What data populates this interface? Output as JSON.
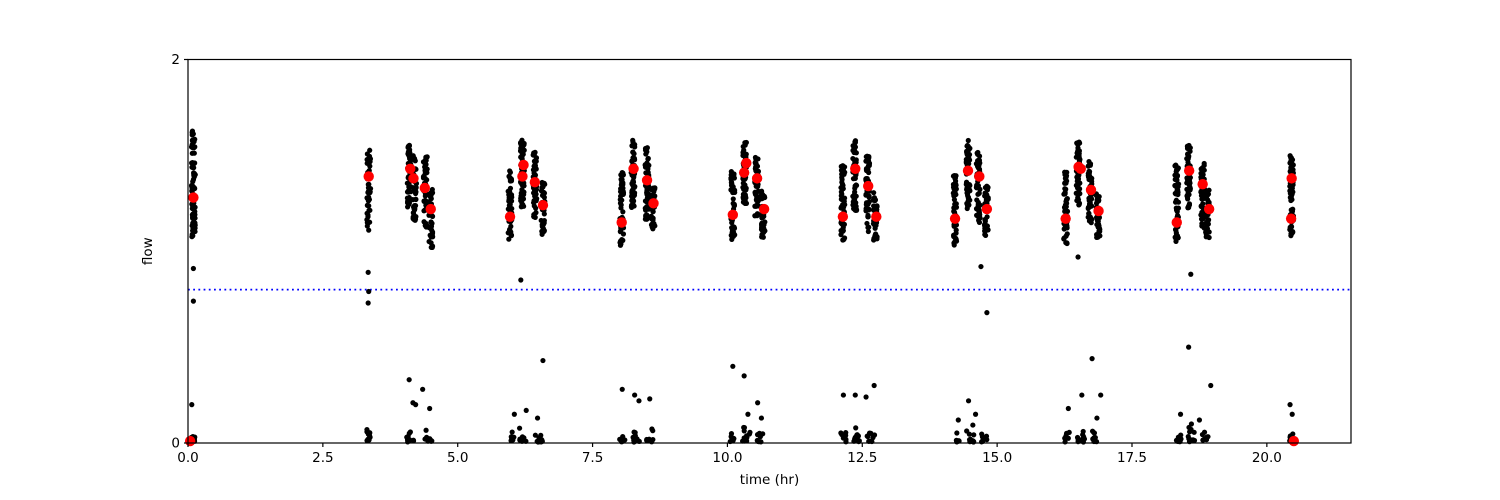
{
  "chart_data": {
    "type": "scatter",
    "title": "",
    "xlabel": "time (hr)",
    "ylabel": "flow",
    "xlim": [
      0,
      21.56
    ],
    "ylim": [
      0,
      2
    ],
    "grid": false,
    "legend": false,
    "x_ticks": [
      {
        "v": 0.0,
        "label": "0.0"
      },
      {
        "v": 2.5,
        "label": "2.5"
      },
      {
        "v": 5.0,
        "label": "5.0"
      },
      {
        "v": 7.5,
        "label": "7.5"
      },
      {
        "v": 10.0,
        "label": "10.0"
      },
      {
        "v": 12.5,
        "label": "12.5"
      },
      {
        "v": 15.0,
        "label": "15.0"
      },
      {
        "v": 17.5,
        "label": "17.5"
      },
      {
        "v": 20.0,
        "label": "20.0"
      }
    ],
    "y_ticks": [
      {
        "v": 0,
        "label": "0"
      },
      {
        "v": 2,
        "label": "2"
      }
    ],
    "threshold_line": {
      "y": 0.8,
      "color": "#0000ff",
      "style": "dotted"
    },
    "point_color": "#000000",
    "point_radius": 2.6,
    "marker_color": "#ff0000",
    "marker_radius": 5.2,
    "bands": [
      {
        "t": 0.1,
        "fmin": 1.45,
        "fmax": 1.65,
        "n": 22
      },
      {
        "t": 0.1,
        "fmin": 1.07,
        "fmax": 1.44,
        "n": 60
      },
      {
        "t": 3.35,
        "fmin": 1.13,
        "fmax": 1.53,
        "n": 50
      },
      {
        "t": 4.1,
        "fmin": 1.22,
        "fmax": 1.56,
        "n": 55
      },
      {
        "t": 4.2,
        "fmin": 1.15,
        "fmax": 1.5,
        "n": 40
      },
      {
        "t": 4.4,
        "fmin": 1.12,
        "fmax": 1.5,
        "n": 50
      },
      {
        "t": 4.5,
        "fmin": 1.02,
        "fmax": 1.34,
        "n": 40
      },
      {
        "t": 5.97,
        "fmin": 1.05,
        "fmax": 1.42,
        "n": 50
      },
      {
        "t": 6.2,
        "fmin": 1.22,
        "fmax": 1.58,
        "n": 60
      },
      {
        "t": 6.43,
        "fmin": 1.17,
        "fmax": 1.52,
        "n": 50
      },
      {
        "t": 6.58,
        "fmin": 1.08,
        "fmax": 1.36,
        "n": 40
      },
      {
        "t": 8.04,
        "fmin": 1.03,
        "fmax": 1.41,
        "n": 50
      },
      {
        "t": 8.25,
        "fmin": 1.22,
        "fmax": 1.58,
        "n": 60
      },
      {
        "t": 8.51,
        "fmin": 1.15,
        "fmax": 1.54,
        "n": 50
      },
      {
        "t": 8.62,
        "fmin": 1.1,
        "fmax": 1.34,
        "n": 35
      },
      {
        "t": 10.1,
        "fmin": 1.05,
        "fmax": 1.42,
        "n": 50
      },
      {
        "t": 10.32,
        "fmin": 1.24,
        "fmax": 1.57,
        "n": 60
      },
      {
        "t": 10.54,
        "fmin": 1.18,
        "fmax": 1.5,
        "n": 50
      },
      {
        "t": 10.66,
        "fmin": 1.06,
        "fmax": 1.32,
        "n": 40
      },
      {
        "t": 12.14,
        "fmin": 1.05,
        "fmax": 1.45,
        "n": 50
      },
      {
        "t": 12.36,
        "fmin": 1.2,
        "fmax": 1.58,
        "n": 60
      },
      {
        "t": 12.6,
        "fmin": 1.1,
        "fmax": 1.5,
        "n": 55
      },
      {
        "t": 12.74,
        "fmin": 1.05,
        "fmax": 1.32,
        "n": 35
      },
      {
        "t": 14.22,
        "fmin": 1.03,
        "fmax": 1.4,
        "n": 50
      },
      {
        "t": 14.46,
        "fmin": 1.22,
        "fmax": 1.58,
        "n": 60
      },
      {
        "t": 14.65,
        "fmin": 1.15,
        "fmax": 1.52,
        "n": 50
      },
      {
        "t": 14.8,
        "fmin": 1.08,
        "fmax": 1.34,
        "n": 40
      },
      {
        "t": 16.27,
        "fmin": 1.04,
        "fmax": 1.42,
        "n": 50
      },
      {
        "t": 16.5,
        "fmin": 1.24,
        "fmax": 1.58,
        "n": 60
      },
      {
        "t": 16.72,
        "fmin": 1.12,
        "fmax": 1.48,
        "n": 50
      },
      {
        "t": 16.87,
        "fmin": 1.06,
        "fmax": 1.32,
        "n": 40
      },
      {
        "t": 18.33,
        "fmin": 1.04,
        "fmax": 1.46,
        "n": 55
      },
      {
        "t": 18.55,
        "fmin": 1.22,
        "fmax": 1.56,
        "n": 60
      },
      {
        "t": 18.81,
        "fmin": 1.12,
        "fmax": 1.46,
        "n": 50
      },
      {
        "t": 18.9,
        "fmin": 1.06,
        "fmax": 1.33,
        "n": 40
      },
      {
        "t": 20.46,
        "fmin": 1.06,
        "fmax": 1.5,
        "n": 65
      }
    ],
    "ground_clusters": [
      {
        "t": 0.07,
        "dt": 0.06,
        "fmax": 0.06,
        "n": 8
      },
      {
        "t": 3.35,
        "dt": 0.04,
        "fmax": 0.09,
        "n": 10
      },
      {
        "t": 4.12,
        "dt": 0.08,
        "fmax": 0.08,
        "n": 12
      },
      {
        "t": 4.45,
        "dt": 0.07,
        "fmax": 0.07,
        "n": 10
      },
      {
        "t": 6.0,
        "dt": 0.05,
        "fmax": 0.06,
        "n": 7
      },
      {
        "t": 6.2,
        "dt": 0.07,
        "fmax": 0.09,
        "n": 11
      },
      {
        "t": 6.5,
        "dt": 0.07,
        "fmax": 0.07,
        "n": 9
      },
      {
        "t": 8.05,
        "dt": 0.05,
        "fmax": 0.07,
        "n": 8
      },
      {
        "t": 8.3,
        "dt": 0.07,
        "fmax": 0.1,
        "n": 12
      },
      {
        "t": 8.57,
        "dt": 0.07,
        "fmax": 0.08,
        "n": 9
      },
      {
        "t": 10.1,
        "dt": 0.05,
        "fmax": 0.07,
        "n": 8
      },
      {
        "t": 10.35,
        "dt": 0.07,
        "fmax": 0.1,
        "n": 12
      },
      {
        "t": 10.62,
        "dt": 0.07,
        "fmax": 0.08,
        "n": 9
      },
      {
        "t": 12.15,
        "dt": 0.05,
        "fmax": 0.07,
        "n": 8
      },
      {
        "t": 12.4,
        "dt": 0.07,
        "fmax": 0.1,
        "n": 12
      },
      {
        "t": 12.66,
        "dt": 0.07,
        "fmax": 0.08,
        "n": 9
      },
      {
        "t": 14.25,
        "dt": 0.05,
        "fmax": 0.08,
        "n": 9
      },
      {
        "t": 14.5,
        "dt": 0.07,
        "fmax": 0.1,
        "n": 12
      },
      {
        "t": 14.76,
        "dt": 0.06,
        "fmax": 0.07,
        "n": 8
      },
      {
        "t": 16.3,
        "dt": 0.05,
        "fmax": 0.08,
        "n": 9
      },
      {
        "t": 16.55,
        "dt": 0.07,
        "fmax": 0.1,
        "n": 12
      },
      {
        "t": 16.8,
        "dt": 0.06,
        "fmax": 0.08,
        "n": 9
      },
      {
        "t": 18.36,
        "dt": 0.05,
        "fmax": 0.07,
        "n": 8
      },
      {
        "t": 18.6,
        "dt": 0.07,
        "fmax": 0.1,
        "n": 12
      },
      {
        "t": 18.86,
        "dt": 0.06,
        "fmax": 0.08,
        "n": 9
      },
      {
        "t": 20.46,
        "dt": 0.05,
        "fmax": 0.08,
        "n": 10
      }
    ],
    "outliers": [
      [
        0.1,
        0.91
      ],
      [
        0.1,
        0.74
      ],
      [
        0.07,
        0.2
      ],
      [
        3.35,
        1.11
      ],
      [
        3.34,
        0.89
      ],
      [
        3.35,
        0.79
      ],
      [
        3.34,
        0.73
      ],
      [
        4.1,
        0.33
      ],
      [
        4.17,
        0.21
      ],
      [
        4.22,
        0.2
      ],
      [
        4.48,
        0.18
      ],
      [
        4.35,
        0.28
      ],
      [
        6.17,
        0.85
      ],
      [
        6.58,
        0.43
      ],
      [
        6.05,
        0.15
      ],
      [
        6.27,
        0.17
      ],
      [
        6.48,
        0.13
      ],
      [
        8.05,
        0.28
      ],
      [
        8.28,
        0.25
      ],
      [
        8.36,
        0.22
      ],
      [
        8.56,
        0.23
      ],
      [
        10.1,
        0.4
      ],
      [
        10.31,
        0.35
      ],
      [
        10.56,
        0.21
      ],
      [
        10.38,
        0.15
      ],
      [
        10.63,
        0.13
      ],
      [
        12.15,
        0.25
      ],
      [
        12.37,
        0.25
      ],
      [
        12.57,
        0.24
      ],
      [
        12.72,
        0.3
      ],
      [
        14.7,
        0.92
      ],
      [
        14.81,
        0.68
      ],
      [
        14.47,
        0.22
      ],
      [
        14.28,
        0.12
      ],
      [
        14.6,
        0.15
      ],
      [
        16.5,
        0.97
      ],
      [
        16.76,
        0.44
      ],
      [
        16.57,
        0.25
      ],
      [
        16.92,
        0.25
      ],
      [
        16.32,
        0.18
      ],
      [
        16.85,
        0.13
      ],
      [
        18.59,
        0.88
      ],
      [
        18.55,
        0.5
      ],
      [
        18.96,
        0.3
      ],
      [
        18.4,
        0.15
      ],
      [
        18.75,
        0.12
      ],
      [
        20.43,
        0.2
      ],
      [
        20.47,
        0.15
      ]
    ],
    "red_markers": [
      [
        0.1,
        1.28
      ],
      [
        0.04,
        0.01
      ],
      [
        3.35,
        1.39
      ],
      [
        4.12,
        1.43
      ],
      [
        4.18,
        1.38
      ],
      [
        4.39,
        1.33
      ],
      [
        4.5,
        1.22
      ],
      [
        5.97,
        1.18
      ],
      [
        6.22,
        1.45
      ],
      [
        6.2,
        1.39
      ],
      [
        6.43,
        1.36
      ],
      [
        6.58,
        1.24
      ],
      [
        8.04,
        1.15
      ],
      [
        8.26,
        1.43
      ],
      [
        8.51,
        1.37
      ],
      [
        8.63,
        1.25
      ],
      [
        10.1,
        1.19
      ],
      [
        10.35,
        1.46
      ],
      [
        10.31,
        1.41
      ],
      [
        10.55,
        1.38
      ],
      [
        10.68,
        1.22
      ],
      [
        12.14,
        1.18
      ],
      [
        12.37,
        1.43
      ],
      [
        12.61,
        1.34
      ],
      [
        12.76,
        1.18
      ],
      [
        14.22,
        1.17
      ],
      [
        14.46,
        1.42
      ],
      [
        14.67,
        1.39
      ],
      [
        14.81,
        1.22
      ],
      [
        16.27,
        1.17
      ],
      [
        16.51,
        1.44
      ],
      [
        16.55,
        1.43
      ],
      [
        16.74,
        1.32
      ],
      [
        16.88,
        1.21
      ],
      [
        18.33,
        1.15
      ],
      [
        18.56,
        1.42
      ],
      [
        18.81,
        1.35
      ],
      [
        18.93,
        1.22
      ],
      [
        20.46,
        1.38
      ],
      [
        20.45,
        1.17
      ],
      [
        20.5,
        0.01
      ]
    ]
  }
}
